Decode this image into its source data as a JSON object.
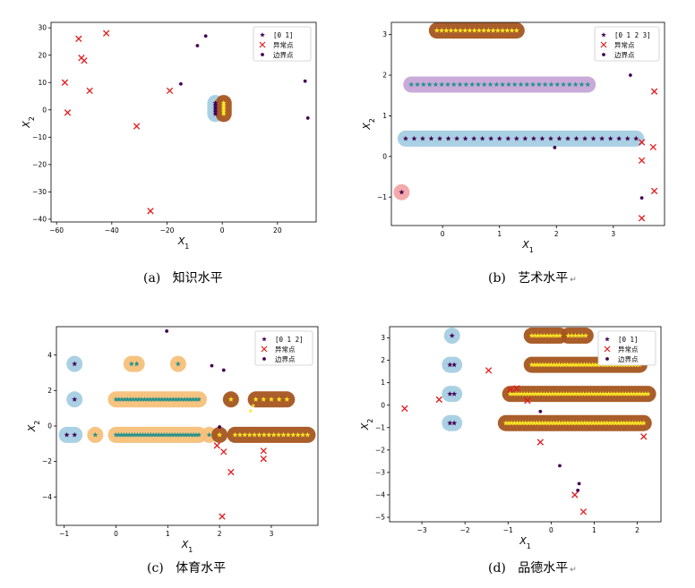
{
  "colors": {
    "label0": "#440154",
    "label1": "#fde725",
    "label2": "#21918c",
    "label3": "#3b528b",
    "anomaly": "#e41a1c",
    "boundary": "#440154",
    "halo_blue": "#a6cee3",
    "halo_brown": "#a6561f",
    "halo_purple": "#c7a6d8",
    "halo_orange": "#f7c07a",
    "halo_red": "#f4a6a6"
  },
  "captions": [
    {
      "letter": "(a)",
      "text": "知识水平",
      "mark": ""
    },
    {
      "letter": "(b)",
      "text": "艺术水平",
      "mark": "↵"
    },
    {
      "letter": "(c)",
      "text": "体育水平",
      "mark": ""
    },
    {
      "letter": "(d)",
      "text": "品德水平",
      "mark": "↵"
    }
  ],
  "chart_data": [
    {
      "type": "scatter",
      "xlabel": "X1",
      "ylabel": "X2",
      "xlim": [
        -62,
        34
      ],
      "ylim": [
        -41,
        32
      ],
      "xticks": [
        -60,
        -40,
        -20,
        0,
        20
      ],
      "yticks": [
        -40,
        -30,
        -20,
        -10,
        0,
        10,
        20,
        30
      ],
      "legend": {
        "placement": "top-right",
        "entries": [
          "[0 1]",
          "异常点",
          "边界点"
        ]
      },
      "clusters": [
        {
          "halo": "halo_blue",
          "x": [
            -2.5,
            -2.5
          ],
          "y": [
            -1.5,
            2.5
          ],
          "star": "label0",
          "n": 6
        },
        {
          "halo": "halo_brown",
          "x": [
            0.5,
            0.5
          ],
          "y": [
            -1.5,
            2.5
          ],
          "star": "label1",
          "n": 6
        }
      ],
      "anomalies": [
        [
          -52,
          26
        ],
        [
          -42,
          28
        ],
        [
          -51,
          19
        ],
        [
          -50,
          18
        ],
        [
          -57,
          10
        ],
        [
          -48,
          7
        ],
        [
          -56,
          -1
        ],
        [
          -31,
          -6
        ],
        [
          -19,
          7
        ],
        [
          -26,
          -37
        ]
      ],
      "boundary": [
        [
          -9,
          23.5
        ],
        [
          -6,
          27
        ],
        [
          -15,
          9.5
        ],
        [
          30,
          10.5
        ],
        [
          31,
          -3
        ]
      ]
    },
    {
      "type": "scatter",
      "xlabel": "X1",
      "ylabel": "X2",
      "xlim": [
        -0.9,
        3.9
      ],
      "ylim": [
        -1.7,
        3.3
      ],
      "xticks": [
        0,
        1,
        2,
        3
      ],
      "yticks": [
        -1,
        0,
        1,
        2,
        3
      ],
      "legend": {
        "placement": "top-right",
        "entries": [
          "[0 1 2 3]",
          "异常点",
          "边界点"
        ]
      },
      "clusters": [
        {
          "halo": "halo_brown",
          "x": [
            -0.1,
            1.3
          ],
          "y": [
            3.1,
            3.1
          ],
          "star": "label1",
          "n": 18
        },
        {
          "halo": "halo_purple",
          "x": [
            -0.55,
            2.55
          ],
          "y": [
            1.77,
            1.77
          ],
          "star": "label2",
          "n": 30
        },
        {
          "halo": "halo_blue",
          "x": [
            -0.65,
            3.4
          ],
          "y": [
            0.44,
            0.44
          ],
          "star": "label0",
          "n": 28
        },
        {
          "halo": "halo_red",
          "x": [
            -0.72,
            -0.72
          ],
          "y": [
            -0.88,
            -0.88
          ],
          "star": "label0",
          "n": 1
        }
      ],
      "anomalies": [
        [
          3.5,
          0.35
        ],
        [
          3.72,
          1.6
        ],
        [
          3.7,
          0.23
        ],
        [
          3.5,
          -0.1
        ],
        [
          3.72,
          -0.85
        ],
        [
          3.5,
          -1.52
        ]
      ],
      "boundary": [
        [
          3.3,
          2.0
        ],
        [
          3.5,
          -1.02
        ],
        [
          1.97,
          0.22
        ]
      ]
    },
    {
      "type": "scatter",
      "xlabel": "X1",
      "ylabel": "X2",
      "xlim": [
        -1.15,
        3.9
      ],
      "ylim": [
        -5.6,
        5.6
      ],
      "xticks": [
        -1,
        0,
        1,
        2,
        3
      ],
      "yticks": [
        -4,
        -2,
        0,
        2,
        4
      ],
      "legend": {
        "placement": "top-right",
        "entries": [
          "[0 1 2]",
          "异常点",
          "边界点"
        ]
      },
      "clusters": [
        {
          "halo": "halo_blue",
          "x": [
            -0.8,
            -0.8
          ],
          "y": [
            3.5,
            3.5
          ],
          "star": "label0",
          "n": 1
        },
        {
          "halo": "halo_blue",
          "x": [
            -0.8,
            -0.8
          ],
          "y": [
            1.5,
            1.5
          ],
          "star": "label0",
          "n": 1
        },
        {
          "halo": "halo_blue",
          "x": [
            -0.95,
            -0.8
          ],
          "y": [
            -0.5,
            -0.5
          ],
          "star": "label0",
          "n": 2
        },
        {
          "halo": "halo_orange",
          "x": [
            0.3,
            0.4
          ],
          "y": [
            3.5,
            3.5
          ],
          "star": "label2",
          "n": 2
        },
        {
          "halo": "halo_orange",
          "x": [
            1.2,
            1.2
          ],
          "y": [
            3.5,
            3.5
          ],
          "star": "label2",
          "n": 1
        },
        {
          "halo": "halo_orange",
          "x": [
            0.0,
            1.6
          ],
          "y": [
            1.5,
            1.5
          ],
          "star": "label2",
          "n": 30
        },
        {
          "halo": "halo_orange",
          "x": [
            -0.4,
            -0.4
          ],
          "y": [
            -0.5,
            -0.5
          ],
          "star": "label2",
          "n": 1
        },
        {
          "halo": "halo_orange",
          "x": [
            0.0,
            1.6
          ],
          "y": [
            -0.5,
            -0.5
          ],
          "star": "label2",
          "n": 32
        },
        {
          "halo": "halo_orange",
          "x": [
            1.8,
            1.8
          ],
          "y": [
            -0.5,
            -0.5
          ],
          "star": "label2",
          "n": 1
        },
        {
          "halo": "halo_brown",
          "x": [
            2.22,
            2.22
          ],
          "y": [
            1.5,
            1.5
          ],
          "star": "label1",
          "n": 1
        },
        {
          "halo": "halo_brown",
          "x": [
            2.7,
            3.3
          ],
          "y": [
            1.5,
            1.5
          ],
          "star": "label1",
          "n": 5
        },
        {
          "halo": "halo_brown",
          "x": [
            2.0,
            2.0
          ],
          "y": [
            -0.5,
            -0.5
          ],
          "star": "label1",
          "n": 1
        },
        {
          "halo": "halo_brown",
          "x": [
            2.3,
            3.7
          ],
          "y": [
            -0.5,
            -0.5
          ],
          "star": "label1",
          "n": 16
        }
      ],
      "anomalies": [
        [
          1.95,
          -1.1
        ],
        [
          2.08,
          -1.45
        ],
        [
          2.22,
          -2.6
        ],
        [
          2.85,
          -1.4
        ],
        [
          2.85,
          -1.85
        ],
        [
          2.05,
          -5.1
        ]
      ],
      "boundary": [
        [
          0.98,
          5.35
        ],
        [
          1.85,
          3.4
        ],
        [
          2.08,
          3.15
        ],
        [
          2.0,
          -0.05
        ]
      ],
      "extra_points": [
        [
          2.6,
          0.85
        ],
        [
          2.65,
          1.15
        ]
      ]
    },
    {
      "type": "scatter",
      "xlabel": "X1",
      "ylabel": "X2",
      "xlim": [
        -3.75,
        2.55
      ],
      "ylim": [
        -5.2,
        3.5
      ],
      "xticks": [
        -3,
        -2,
        -1,
        0,
        1,
        2
      ],
      "yticks": [
        -5,
        -4,
        -3,
        -2,
        -1,
        0,
        1,
        2,
        3
      ],
      "legend": {
        "placement": "top-right",
        "entries": [
          "[0 1]",
          "异常点",
          "边界点"
        ]
      },
      "clusters": [
        {
          "halo": "halo_blue",
          "x": [
            -2.3,
            -2.3
          ],
          "y": [
            3.1,
            3.1
          ],
          "star": "label0",
          "n": 1
        },
        {
          "halo": "halo_blue",
          "x": [
            -2.35,
            -2.25
          ],
          "y": [
            1.8,
            1.8
          ],
          "star": "label0",
          "n": 2
        },
        {
          "halo": "halo_blue",
          "x": [
            -2.35,
            -2.25
          ],
          "y": [
            0.5,
            0.5
          ],
          "star": "label0",
          "n": 2
        },
        {
          "halo": "halo_blue",
          "x": [
            -2.35,
            -2.25
          ],
          "y": [
            -0.8,
            -0.8
          ],
          "star": "label0",
          "n": 2
        },
        {
          "halo": "halo_brown",
          "x": [
            -0.45,
            0.2
          ],
          "y": [
            3.1,
            3.1
          ],
          "star": "label1",
          "n": 10
        },
        {
          "halo": "halo_brown",
          "x": [
            0.4,
            0.8
          ],
          "y": [
            3.1,
            3.1
          ],
          "star": "label1",
          "n": 6
        },
        {
          "halo": "halo_brown",
          "x": [
            -0.45,
            2.05
          ],
          "y": [
            1.8,
            1.8
          ],
          "star": "label1",
          "n": 40
        },
        {
          "halo": "halo_brown",
          "x": [
            -0.95,
            2.25
          ],
          "y": [
            0.5,
            0.5
          ],
          "star": "label1",
          "n": 50
        },
        {
          "halo": "halo_brown",
          "x": [
            -1.05,
            2.15
          ],
          "y": [
            -0.8,
            -0.8
          ],
          "star": "label1",
          "n": 50
        }
      ],
      "anomalies": [
        [
          -3.4,
          -0.15
        ],
        [
          -2.6,
          0.25
        ],
        [
          -1.45,
          1.55
        ],
        [
          -0.95,
          0.7
        ],
        [
          -0.8,
          0.75
        ],
        [
          -0.55,
          0.2
        ],
        [
          -0.25,
          -1.65
        ],
        [
          0.55,
          -4.0
        ],
        [
          0.75,
          -4.75
        ],
        [
          2.15,
          -1.4
        ]
      ],
      "boundary": [
        [
          -0.25,
          -0.28
        ],
        [
          0.2,
          -2.7
        ],
        [
          0.65,
          -3.5
        ],
        [
          0.62,
          -3.8
        ]
      ]
    }
  ]
}
